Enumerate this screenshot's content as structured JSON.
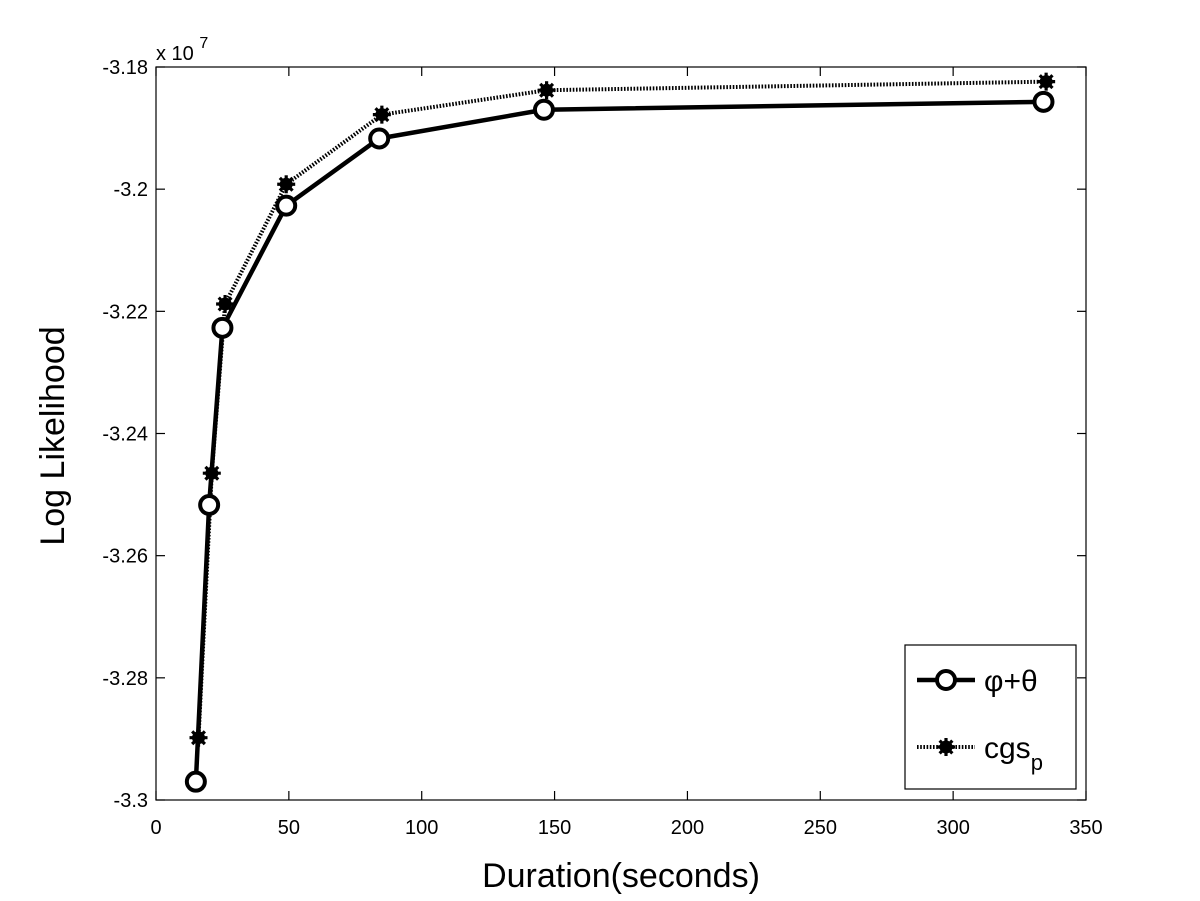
{
  "chart_data": {
    "type": "line",
    "title": "",
    "xlabel": "Duration(seconds)",
    "ylabel": "Log Likelihood",
    "y_multiplier_label": {
      "prefix": "x 10",
      "power": "7"
    },
    "xlim": [
      0,
      350
    ],
    "ylim": [
      -3.3,
      -3.18
    ],
    "xticks": [
      0,
      50,
      100,
      150,
      200,
      250,
      300,
      350
    ],
    "xtick_labels": [
      "0",
      "50",
      "100",
      "150",
      "200",
      "250",
      "300",
      "350"
    ],
    "yticks": [
      -3.3,
      -3.28,
      -3.26,
      -3.24,
      -3.22,
      -3.2,
      -3.18
    ],
    "ytick_labels": [
      "-3.3",
      "-3.28",
      "-3.26",
      "-3.24",
      "-3.22",
      "-3.2",
      "-3.18"
    ],
    "grid": false,
    "legend_position": "bottom-right",
    "series": [
      {
        "name": "φ+θ",
        "name_main": "φ+θ",
        "name_sub": "",
        "marker": "circle",
        "line_style": "solid",
        "color": "#000000",
        "x": [
          15,
          20,
          25,
          49,
          84,
          146,
          334
        ],
        "y": [
          -3.297,
          -3.2517,
          -3.2227,
          -3.2027,
          -3.1917,
          -3.187,
          -3.1857
        ]
      },
      {
        "name": "cgsp",
        "name_main": "cgs",
        "name_sub": "p",
        "marker": "star",
        "line_style": "dotted",
        "color": "#000000",
        "x": [
          16,
          21,
          26,
          49,
          85,
          147,
          335
        ],
        "y": [
          -3.2898,
          -3.2465,
          -3.2188,
          -3.1992,
          -3.1878,
          -3.1838,
          -3.1824
        ]
      }
    ]
  }
}
